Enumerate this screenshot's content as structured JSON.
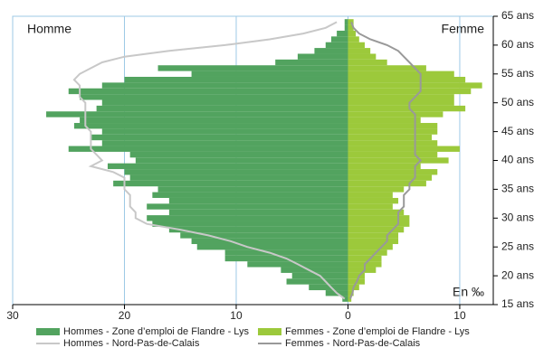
{
  "chart_data": {
    "type": "bar",
    "labels": [
      "Homme",
      "Femme",
      "En ‰"
    ],
    "x": [
      16,
      17,
      18,
      19,
      20,
      21,
      22,
      23,
      24,
      25,
      26,
      27,
      28,
      29,
      30,
      31,
      32,
      33,
      34,
      35,
      36,
      37,
      38,
      39,
      40,
      41,
      42,
      43,
      44,
      45,
      46,
      47,
      48,
      49,
      50,
      51,
      52,
      53,
      54,
      55,
      56,
      57,
      58,
      59,
      60,
      61,
      62,
      63,
      64
    ],
    "series": [
      {
        "name": "Hommes - Zone d’emploi de Flandre - Lys",
        "type": "bar",
        "color": "#52a35f",
        "values": [
          -0.5,
          -2,
          -3.5,
          -5.5,
          -5,
          -6,
          -9,
          -11,
          -11,
          -13.5,
          -14,
          -15,
          -16,
          -17.5,
          -18,
          -16,
          -18,
          -16,
          -17.5,
          -17,
          -21,
          -19.5,
          -20,
          -21.5,
          -19,
          -19.5,
          -25,
          -22,
          -23,
          -22,
          -24.5,
          -24,
          -27,
          -22.5,
          -22,
          -24,
          -25,
          -22,
          -20,
          -14,
          -17,
          -6.5,
          -4.5,
          -3,
          -2,
          -1.5,
          -1,
          -0.3,
          -0.3
        ]
      },
      {
        "name": "Femmes - Zone d’emploi de Flandre - Lys",
        "type": "bar",
        "color": "#9cc93b",
        "values": [
          0.3,
          0.5,
          1,
          1.5,
          1.5,
          2.5,
          3,
          3,
          3.5,
          4,
          4.5,
          4.5,
          5,
          5.5,
          5.5,
          5,
          4,
          4.5,
          4,
          5,
          7,
          7.5,
          8,
          6.5,
          9,
          8,
          10,
          8,
          7.5,
          8,
          8,
          6.5,
          8.5,
          10.5,
          9.5,
          9.5,
          11,
          12,
          10.5,
          9.5,
          7,
          3.5,
          2.5,
          2,
          1.5,
          1,
          0.7,
          0.5,
          0.5
        ]
      },
      {
        "name": "Hommes - Nord-Pas-de-Calais",
        "type": "line",
        "color": "#c8c8c8",
        "values": [
          -0.3,
          -1,
          -1.5,
          -2,
          -2.5,
          -3.5,
          -4.5,
          -5.5,
          -7,
          -9,
          -10.5,
          -12.5,
          -15,
          -18,
          -19,
          -19,
          -19.5,
          -19.5,
          -19.5,
          -20,
          -20,
          -20,
          -21,
          -23,
          -22,
          -22.5,
          -23,
          -23,
          -23,
          -23,
          -23.5,
          -23.5,
          -23.5,
          -23.5,
          -23.5,
          -24,
          -24,
          -24,
          -24.5,
          -24,
          -23,
          -22,
          -20,
          -16,
          -11,
          -7,
          -4,
          -2,
          -1
        ]
      },
      {
        "name": "Femmes - Nord-Pas-de-Calais",
        "type": "line",
        "color": "#999999",
        "values": [
          0.2,
          0.4,
          0.5,
          0.8,
          1,
          1.5,
          1.5,
          2,
          2.5,
          3,
          3.5,
          3.5,
          4,
          4.5,
          4.5,
          4.5,
          5,
          5,
          5,
          5.5,
          5.5,
          6,
          6,
          6,
          6.5,
          6,
          6,
          6,
          6,
          6,
          6,
          6,
          6,
          5.5,
          5.5,
          6,
          6.5,
          6.5,
          6.5,
          6.5,
          6,
          5.5,
          5,
          4.5,
          3.5,
          2,
          1,
          0.5,
          0.3
        ]
      }
    ],
    "xlim": [
      -30,
      13
    ],
    "xticks": [
      {
        "value": -30,
        "label": "30"
      },
      {
        "value": -20,
        "label": "20"
      },
      {
        "value": -10,
        "label": "10"
      },
      0,
      10
    ],
    "ylim": [
      15,
      65
    ],
    "yticks": [
      {
        "value": 15,
        "label": "15 ans"
      },
      {
        "value": 20,
        "label": "20 ans"
      },
      {
        "value": 25,
        "label": "25 ans"
      },
      {
        "value": 30,
        "label": "30 ans"
      },
      {
        "value": 35,
        "label": "35 ans"
      },
      {
        "value": 40,
        "label": "40 ans"
      },
      {
        "value": 45,
        "label": "45 ans"
      },
      {
        "value": 50,
        "label": "50 ans"
      },
      {
        "value": 55,
        "label": "55 ans"
      },
      {
        "value": 60,
        "label": "60 ans"
      },
      {
        "value": 65,
        "label": "65 ans"
      }
    ],
    "grid": true
  }
}
